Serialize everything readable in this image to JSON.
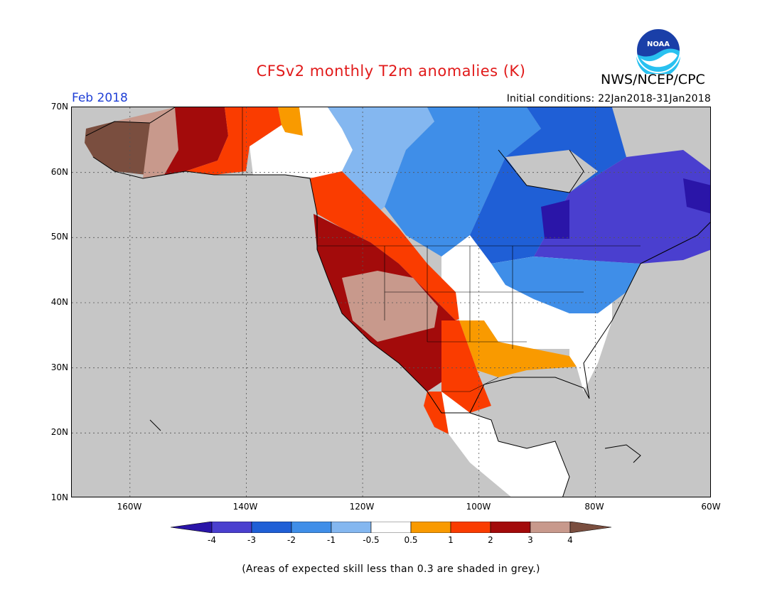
{
  "header": {
    "title": "CFSv2 monthly T2m anomalies (K)",
    "org": "NWS/NCEP/CPC",
    "logo_text": "NOAA",
    "month": "Feb 2018",
    "init_conditions": "Initial conditions: 22Jan2018-31Jan2018"
  },
  "map": {
    "lat_labels": [
      "70N",
      "60N",
      "50N",
      "40N",
      "30N",
      "20N",
      "10N"
    ],
    "lon_labels": [
      "160W",
      "140W",
      "120W",
      "100W",
      "80W",
      "60W"
    ],
    "grid_style": "dotted",
    "background_color": "#c6c6c6",
    "lon_range": [
      -171,
      -61
    ],
    "lat_range": [
      10,
      70
    ],
    "regions": [
      {
        "name": "Western Alaska",
        "anomaly": "3 to 4"
      },
      {
        "name": "Eastern Alaska / Yukon",
        "anomaly": "1 to 3"
      },
      {
        "name": "Great Basin / Southwest US",
        "anomaly": "3 to 4"
      },
      {
        "name": "Pacific Northwest / Rockies",
        "anomaly": "2 to 3"
      },
      {
        "name": "Southern Plains / Gulf Coast",
        "anomaly": "0.5 to 2"
      },
      {
        "name": "Central Plains / Southeast US",
        "anomaly": "-0.5 to 0.5"
      },
      {
        "name": "Northeast US / Great Lakes",
        "anomaly": "-2 to -1"
      },
      {
        "name": "Central Canada / Hudson Bay",
        "anomaly": "-3 to -2"
      },
      {
        "name": "Eastern Canada / Quebec",
        "anomaly": "-4 to -3"
      }
    ]
  },
  "colorbar": {
    "labels": [
      "-4",
      "-3",
      "-2",
      "-1",
      "-0.5",
      "0.5",
      "1",
      "2",
      "3",
      "4"
    ],
    "colors": [
      "#2a15a8",
      "#4a3fcf",
      "#1f5fd6",
      "#3f8ee8",
      "#84b7f0",
      "#ffffff",
      "#f99a00",
      "#fa3c00",
      "#a30b0b",
      "#c8998c",
      "#7a4e3f"
    ]
  },
  "footnote": "(Areas of expected skill less than 0.3 are shaded in grey.)"
}
